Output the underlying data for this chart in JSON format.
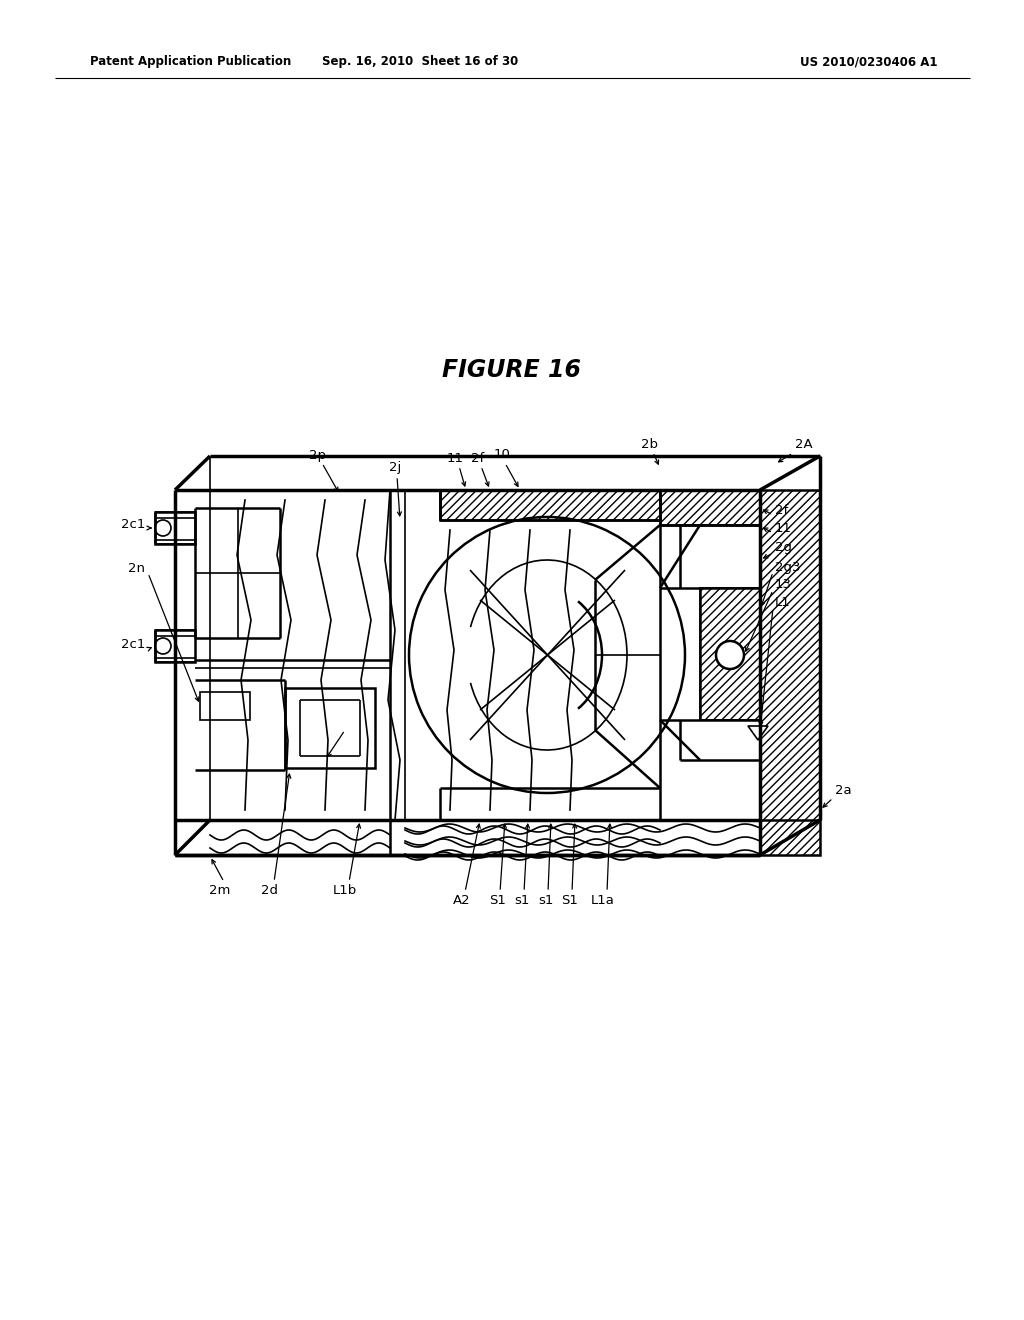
{
  "title": "FIGURE 16",
  "header_left": "Patent Application Publication",
  "header_center": "Sep. 16, 2010  Sheet 16 of 30",
  "header_right": "US 2010/0230406 A1",
  "bg_color": "#ffffff",
  "line_color": "#000000",
  "figure_width": 10.24,
  "figure_height": 13.2
}
